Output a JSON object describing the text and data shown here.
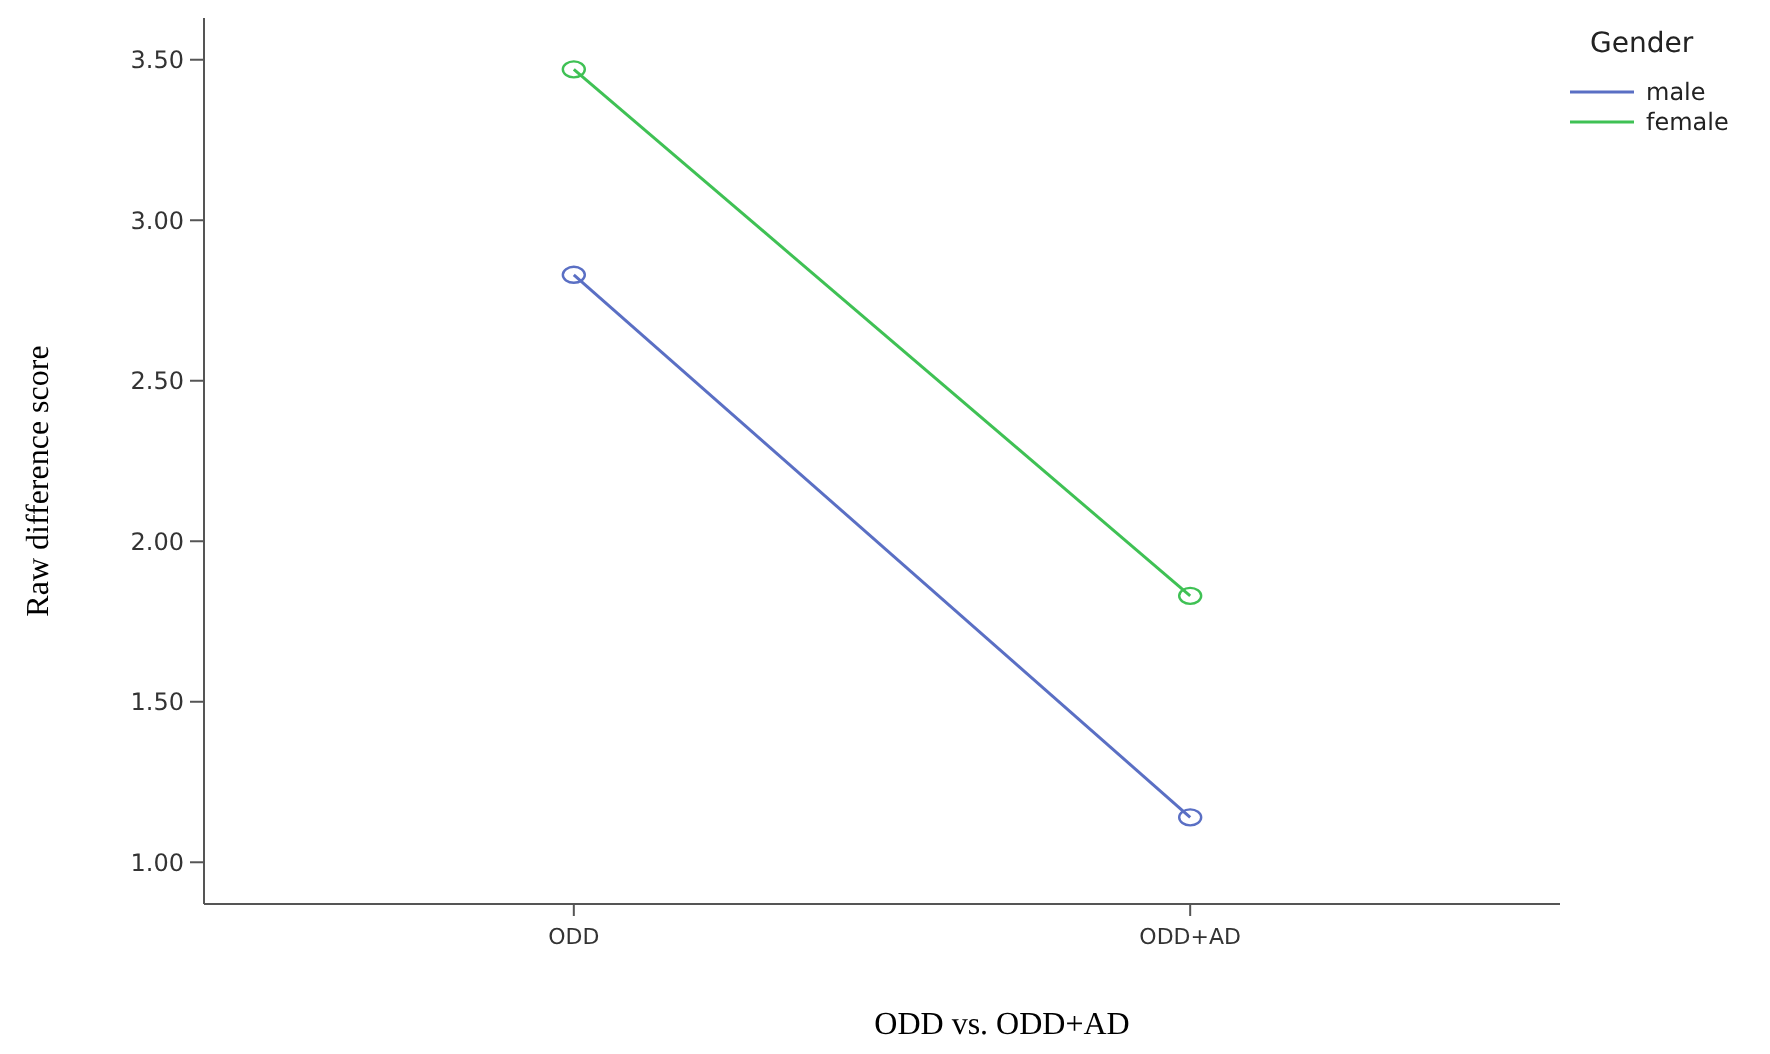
{
  "chart_data": {
    "type": "line",
    "xlabel": "ODD vs. ODD+AD",
    "ylabel": "Raw difference score",
    "legend_title": "Gender",
    "categories": [
      "ODD",
      "ODD+AD"
    ],
    "series": [
      {
        "name": "male",
        "color": "#5a6fc4",
        "values": [
          2.83,
          1.14
        ]
      },
      {
        "name": "female",
        "color": "#3fc154",
        "values": [
          3.47,
          1.83
        ]
      }
    ],
    "ylim": [
      0.87,
      3.63
    ],
    "yticks": [
      {
        "value": 1,
        "label": "1.00"
      },
      {
        "value": 1.5,
        "label": "1.50"
      },
      {
        "value": 2,
        "label": "2.00"
      },
      {
        "value": 2.5,
        "label": "2.50"
      },
      {
        "value": 3,
        "label": "3.00"
      },
      {
        "value": 3.5,
        "label": "3.50"
      }
    ],
    "grid": false,
    "legend": "top right",
    "marker": "circle",
    "line_style": "solid"
  }
}
